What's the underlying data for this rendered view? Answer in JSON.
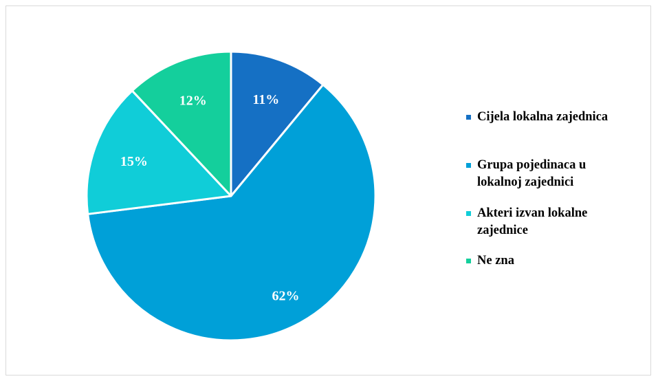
{
  "chart_data": {
    "type": "pie",
    "title": "",
    "slices": [
      {
        "label": "Cijela lokalna zajednica",
        "value": 11,
        "display": "11%",
        "color": "#1570c4"
      },
      {
        "label": "Grupa pojedinaca u lokalnoj zajednici",
        "value": 62,
        "display": "62%",
        "color": "#00a0d8"
      },
      {
        "label": "Akteri izvan lokalne zajednice",
        "value": 15,
        "display": "15%",
        "color": "#10cdd8"
      },
      {
        "label": "Ne zna",
        "value": 12,
        "display": "12%",
        "color": "#14cf9c"
      }
    ],
    "legend_position": "right"
  },
  "legend": {
    "items": [
      {
        "line1": "Cijela lokalna zajednica",
        "line2": ""
      },
      {
        "line1": "Grupa pojedinaca u",
        "line2": "lokalnoj zajednici"
      },
      {
        "line1": "Akteri izvan lokalne",
        "line2": "zajednice"
      },
      {
        "line1": "Ne zna",
        "line2": ""
      }
    ]
  }
}
